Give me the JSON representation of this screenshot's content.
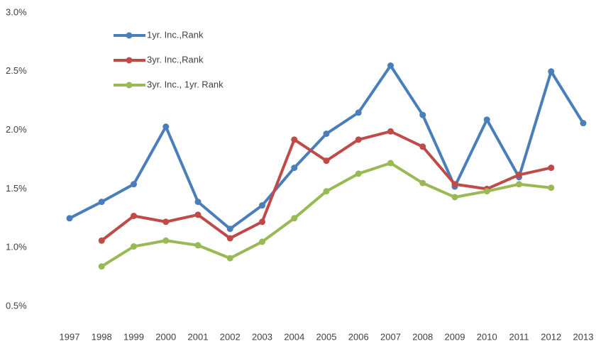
{
  "chart_data": {
    "type": "line",
    "categories": [
      "1997",
      "1998",
      "1999",
      "2000",
      "2001",
      "2002",
      "2003",
      "2004",
      "2005",
      "2006",
      "2007",
      "2008",
      "2009",
      "2010",
      "2011",
      "2012",
      "2013"
    ],
    "series": [
      {
        "name": "1yr. Inc.,Rank",
        "color": "#4a7ebb",
        "values": [
          1.25,
          1.39,
          1.54,
          2.03,
          1.39,
          1.16,
          1.36,
          1.68,
          1.97,
          2.15,
          2.55,
          2.13,
          1.52,
          2.09,
          1.6,
          2.5,
          2.06
        ]
      },
      {
        "name": "3yr. Inc.,Rank",
        "color": "#be4b48",
        "values": [
          null,
          1.06,
          1.27,
          1.22,
          1.28,
          1.08,
          1.22,
          1.92,
          1.74,
          1.92,
          1.99,
          1.86,
          1.54,
          1.5,
          1.62,
          1.68,
          null
        ]
      },
      {
        "name": "3yr. Inc., 1yr. Rank",
        "color": "#98b954",
        "values": [
          null,
          0.84,
          1.01,
          1.06,
          1.02,
          0.91,
          1.05,
          1.25,
          1.48,
          1.63,
          1.72,
          1.55,
          1.43,
          1.48,
          1.54,
          1.51,
          null
        ]
      }
    ],
    "ylim": [
      0.5,
      3.0
    ],
    "yticks": [
      {
        "value": 0.5,
        "label": "0.5%"
      },
      {
        "value": 1.0,
        "label": "1.0%"
      },
      {
        "value": 1.5,
        "label": "1.5%"
      },
      {
        "value": 2.0,
        "label": "2.0%"
      },
      {
        "value": 2.5,
        "label": "2.5%"
      },
      {
        "value": 3.0,
        "label": "3.0%"
      }
    ],
    "grid": false,
    "legend": "upper-left"
  }
}
